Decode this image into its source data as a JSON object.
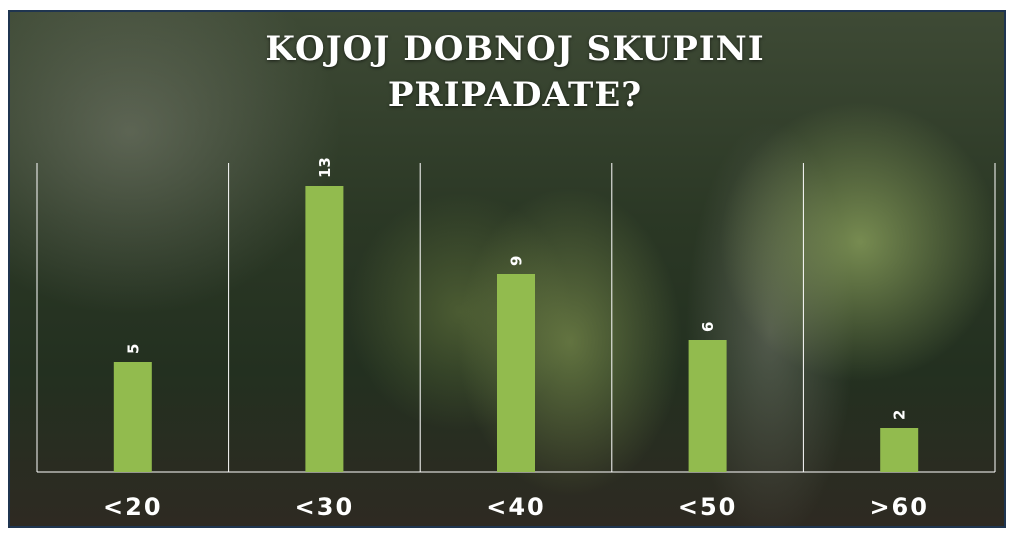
{
  "chart_data": {
    "type": "bar",
    "title": "KOJOJ DOBNOJ SKUPINI PRIPADATE?",
    "categories": [
      "<20",
      "<30",
      "<40",
      "<50",
      ">60"
    ],
    "values": [
      5,
      13,
      9,
      6,
      2
    ],
    "color": "#92bb4e"
  }
}
